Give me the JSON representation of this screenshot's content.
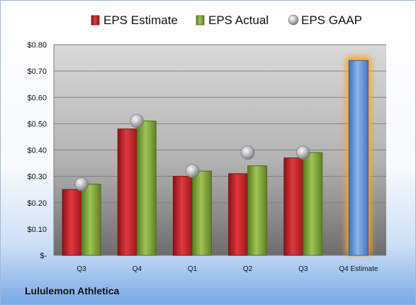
{
  "company": "Lululemon Athletica",
  "chart_data": {
    "type": "bar",
    "categories": [
      "Q3",
      "Q4",
      "Q1",
      "Q2",
      "Q3",
      "Q4 Estimate"
    ],
    "series": [
      {
        "name": "EPS Estimate",
        "values": [
          0.25,
          0.48,
          0.3,
          0.31,
          0.37,
          null
        ],
        "color": "#c0282e"
      },
      {
        "name": "EPS Actual",
        "values": [
          0.27,
          0.51,
          0.32,
          0.34,
          0.39,
          null
        ],
        "color": "#7fa43a"
      },
      {
        "name": "EPS GAAP",
        "values": [
          0.27,
          0.51,
          0.32,
          0.39,
          0.39,
          null
        ],
        "color": "#a7a9ad",
        "marker": "sphere"
      }
    ],
    "forecast": {
      "category": "Q4 Estimate",
      "value": 0.74,
      "color": "#5b8fd6",
      "glow": "#f5a623"
    },
    "ylim": [
      0,
      0.8
    ],
    "yticks": [
      {
        "value": 0,
        "label": "$-"
      },
      {
        "value": 0.1,
        "label": "$0.10"
      },
      {
        "value": 0.2,
        "label": "$0.20"
      },
      {
        "value": 0.3,
        "label": "$0.30"
      },
      {
        "value": 0.4,
        "label": "$0.40"
      },
      {
        "value": 0.5,
        "label": "$0.50"
      },
      {
        "value": 0.6,
        "label": "$0.60"
      },
      {
        "value": 0.7,
        "label": "$0.70"
      },
      {
        "value": 0.8,
        "label": "$0.80"
      }
    ],
    "grid": true,
    "legend_position": "top"
  }
}
